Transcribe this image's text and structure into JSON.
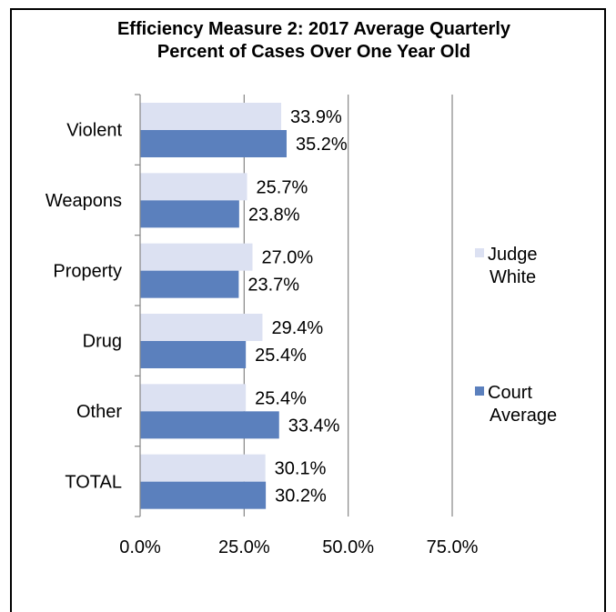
{
  "chart_data": {
    "type": "bar",
    "orientation": "horizontal",
    "title": [
      "Efficiency Measure 2: 2017 Average Quarterly",
      "Percent of Cases Over One Year Old"
    ],
    "categories": [
      "Violent",
      "Weapons",
      "Property",
      "Drug",
      "Other",
      "TOTAL"
    ],
    "series": [
      {
        "name": [
          "Judge",
          "White"
        ],
        "color": "#dce1f2",
        "values": [
          33.9,
          25.7,
          27.0,
          29.4,
          25.4,
          30.1
        ],
        "labels": [
          "33.9%",
          "25.7%",
          "27.0%",
          "29.4%",
          "25.4%",
          "30.1%"
        ]
      },
      {
        "name": [
          "Court",
          "Average"
        ],
        "color": "#5b80bd",
        "values": [
          35.2,
          23.8,
          23.7,
          25.4,
          33.4,
          30.2
        ],
        "labels": [
          "35.2%",
          "23.8%",
          "23.7%",
          "25.4%",
          "33.4%",
          "30.2%"
        ]
      }
    ],
    "xlim": [
      0,
      75
    ],
    "xticks": [
      0,
      25,
      50,
      75
    ],
    "xtick_labels": [
      "0.0%",
      "25.0%",
      "50.0%",
      "75.0%"
    ],
    "grid": "vertical",
    "legend_position": "right"
  }
}
